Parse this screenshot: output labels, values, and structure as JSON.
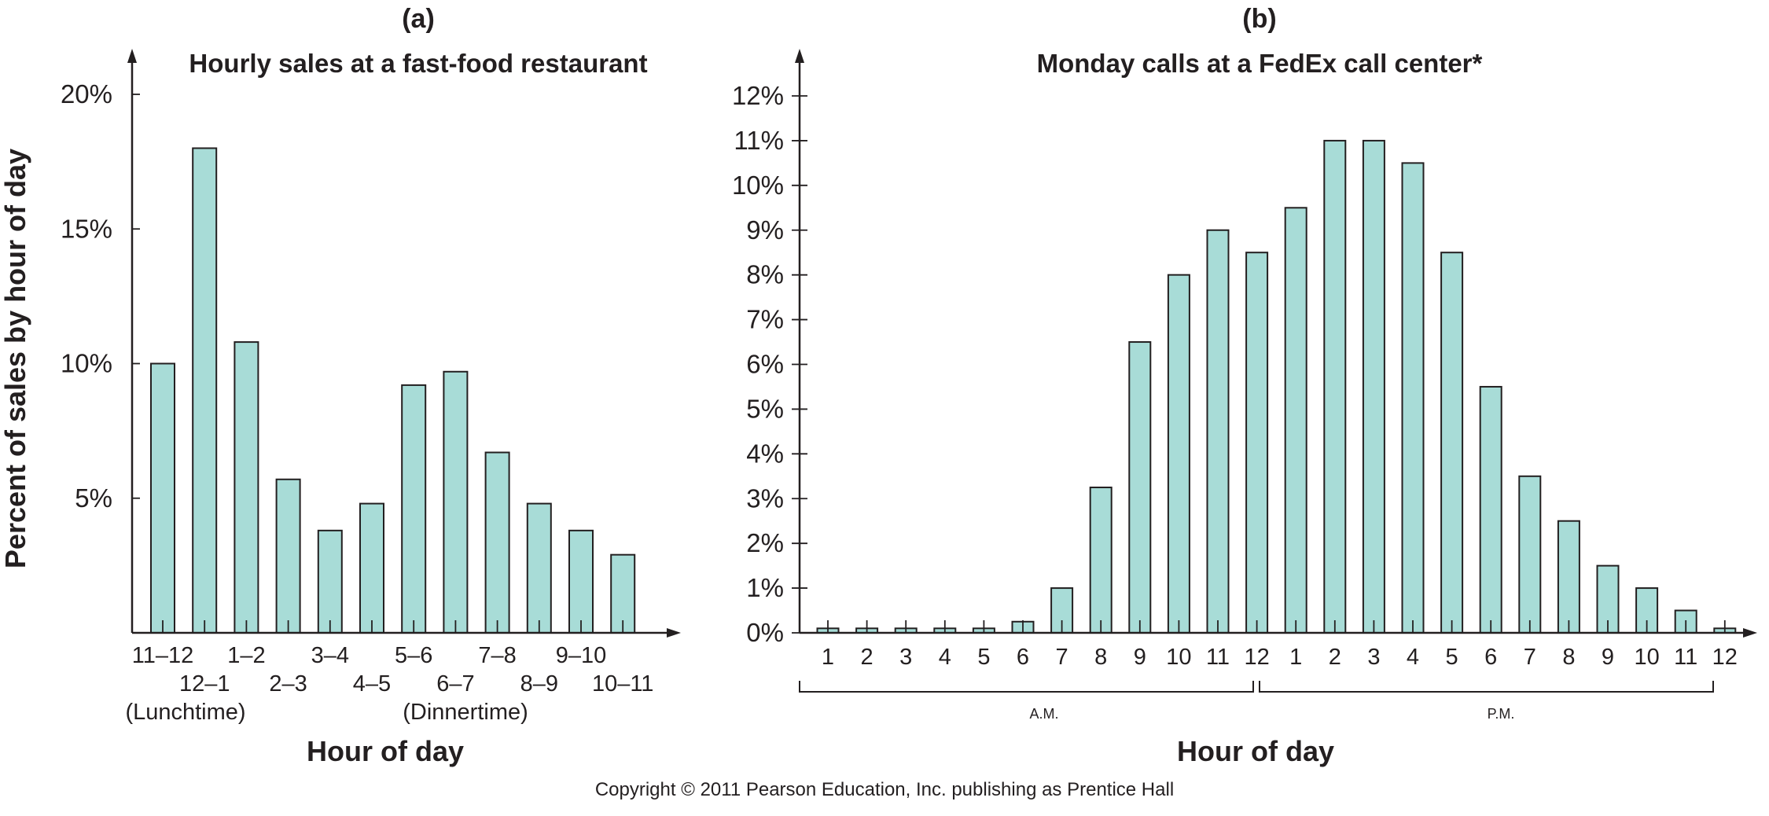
{
  "copyright": "Copyright © 2011 Pearson Education, Inc. publishing as Prentice Hall",
  "colors": {
    "bar_fill": "#a8dcd7",
    "ink": "#231f20"
  },
  "chart_data": [
    {
      "panel": "(a)",
      "type": "bar",
      "title": "Hourly sales at a fast-food restaurant",
      "xlabel": "Hour of day",
      "ylabel": "Percent of sales by hour of day",
      "ylim": [
        0,
        20
      ],
      "yticks": [
        5,
        10,
        15,
        20
      ],
      "ytick_labels": [
        "5%",
        "10%",
        "15%",
        "20%"
      ],
      "categories": [
        "11–12",
        "12–1",
        "1–2",
        "2–3",
        "3–4",
        "4–5",
        "5–6",
        "6–7",
        "7–8",
        "8–9",
        "9–10",
        "10–11"
      ],
      "values": [
        10,
        18,
        10.8,
        5.7,
        3.8,
        4.8,
        9.2,
        9.7,
        6.7,
        4.8,
        3.8,
        2.9
      ],
      "annotations": [
        "(Lunchtime)",
        "(Dinnertime)"
      ],
      "grid": false
    },
    {
      "panel": "(b)",
      "type": "bar",
      "title": "Monday calls at a FedEx call center*",
      "xlabel": "Hour of day",
      "ylim": [
        0,
        12
      ],
      "yticks": [
        0,
        1,
        2,
        3,
        4,
        5,
        6,
        7,
        8,
        9,
        10,
        11,
        12
      ],
      "ytick_labels": [
        "0%",
        "1%",
        "2%",
        "3%",
        "4%",
        "5%",
        "6%",
        "7%",
        "8%",
        "9%",
        "10%",
        "11%",
        "12%"
      ],
      "categories": [
        "1",
        "2",
        "3",
        "4",
        "5",
        "6",
        "7",
        "8",
        "9",
        "10",
        "11",
        "12",
        "1",
        "2",
        "3",
        "4",
        "5",
        "6",
        "7",
        "8",
        "9",
        "10",
        "11",
        "12"
      ],
      "values": [
        0.1,
        0.1,
        0.1,
        0.1,
        0.1,
        0.25,
        1,
        3.25,
        6.5,
        8,
        9,
        8.5,
        9.5,
        11,
        11,
        10.5,
        8.5,
        5.5,
        3.5,
        2.5,
        1.5,
        1,
        0.5,
        0.1
      ],
      "periods": [
        "A.M.",
        "P.M."
      ],
      "grid": false
    }
  ]
}
